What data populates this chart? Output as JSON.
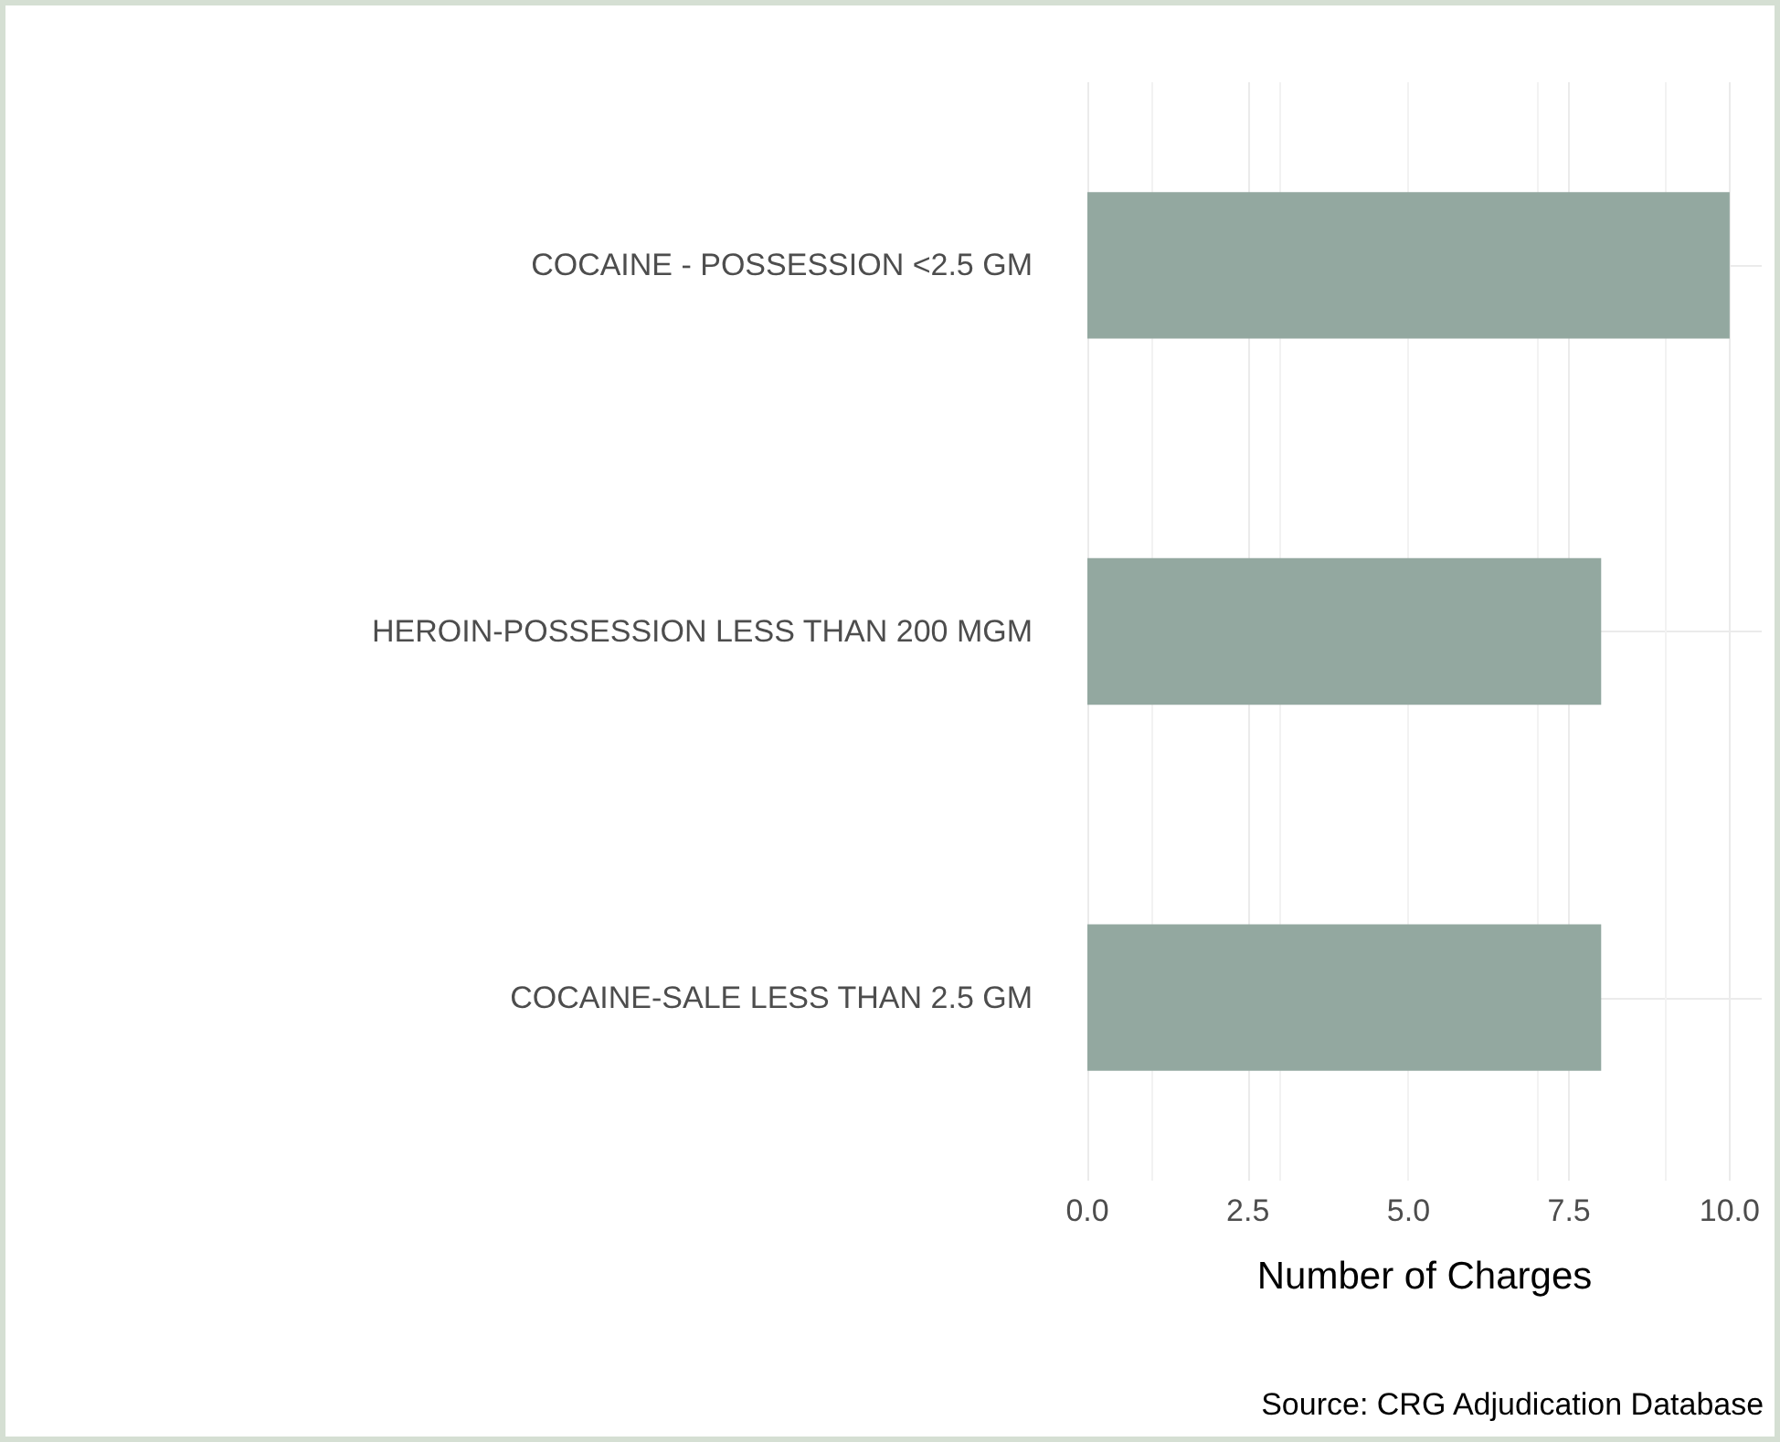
{
  "chart_data": {
    "type": "bar",
    "orientation": "horizontal",
    "categories": [
      "COCAINE - POSSESSION <2.5 GM",
      "HEROIN-POSSESSION LESS THAN 200 MGM",
      "COCAINE-SALE LESS THAN 2.5 GM"
    ],
    "values": [
      10,
      8,
      8
    ],
    "color": "#93a8a0",
    "xlim": [
      0,
      10.5
    ],
    "xticks": [
      {
        "value": 0,
        "label": "0.0"
      },
      {
        "value": 2.5,
        "label": "2.5"
      },
      {
        "value": 5,
        "label": "5.0"
      },
      {
        "value": 7.5,
        "label": "7.5"
      },
      {
        "value": 10,
        "label": "10.0"
      }
    ],
    "xlabel": "Number of Charges",
    "annotations": [
      "Source: CRG Adjudication Database"
    ],
    "grid": true
  }
}
